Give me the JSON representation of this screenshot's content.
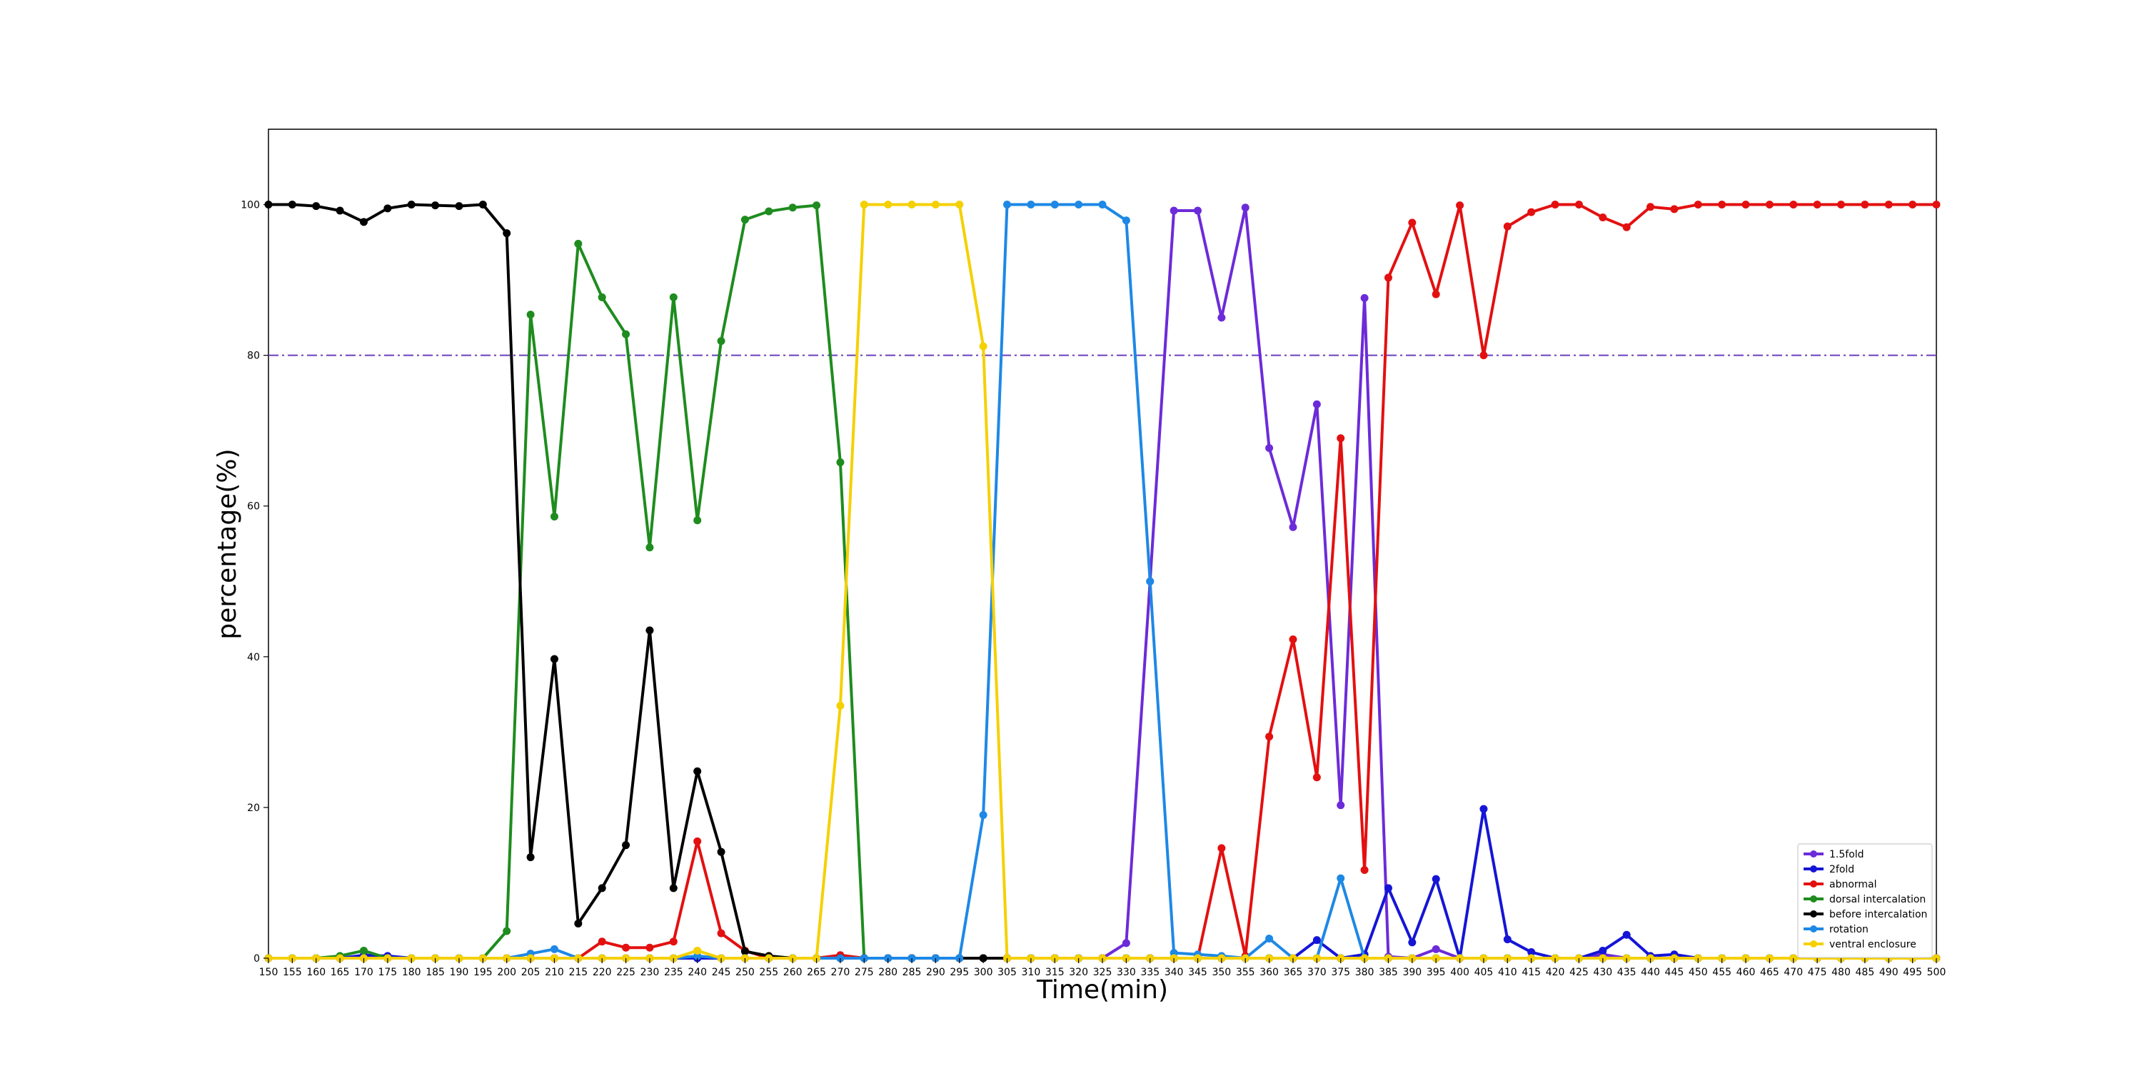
{
  "chart_data": {
    "type": "line",
    "title": "",
    "xlabel": "Time(min)",
    "ylabel": "percentage(%)",
    "xlim": [
      150,
      500
    ],
    "ylim": [
      0,
      110
    ],
    "x_ticks": [
      150,
      155,
      160,
      165,
      170,
      175,
      180,
      185,
      190,
      195,
      200,
      205,
      210,
      215,
      220,
      225,
      230,
      235,
      240,
      245,
      250,
      255,
      260,
      265,
      270,
      275,
      280,
      285,
      290,
      295,
      300,
      305,
      310,
      315,
      320,
      325,
      330,
      335,
      340,
      345,
      350,
      355,
      360,
      365,
      370,
      375,
      380,
      385,
      390,
      395,
      400,
      405,
      410,
      415,
      420,
      425,
      430,
      435,
      440,
      445,
      450,
      455,
      460,
      465,
      470,
      475,
      480,
      485,
      490,
      495,
      500
    ],
    "y_ticks": [
      0,
      20,
      40,
      60,
      80,
      100
    ],
    "threshold": {
      "y": 80,
      "color": "#6a3fbf",
      "style": "dash-dot"
    },
    "grid": false,
    "legend_position": "lower-right",
    "x": [
      150,
      155,
      160,
      165,
      170,
      175,
      180,
      185,
      190,
      195,
      200,
      205,
      210,
      215,
      220,
      225,
      230,
      235,
      240,
      245,
      250,
      255,
      260,
      265,
      270,
      275,
      280,
      285,
      290,
      295,
      300,
      305,
      310,
      315,
      320,
      325,
      330,
      335,
      340,
      345,
      350,
      355,
      360,
      365,
      370,
      375,
      380,
      385,
      390,
      395,
      400,
      405,
      410,
      415,
      420,
      425,
      430,
      435,
      440,
      445,
      450,
      455,
      460,
      465,
      470,
      475,
      480,
      485,
      490,
      495,
      500
    ],
    "series": [
      {
        "name": "1.5fold",
        "color": "#6c2bd9",
        "values": [
          0,
          0,
          0,
          0,
          0,
          0,
          0,
          0,
          0,
          0,
          0,
          0,
          0,
          0,
          0,
          0,
          0,
          0,
          0,
          0,
          0,
          0,
          0,
          0,
          0,
          0,
          0,
          0,
          0,
          0,
          0,
          0,
          0,
          0,
          0,
          0,
          2,
          50,
          99.2,
          99.2,
          85,
          99.6,
          67.7,
          57.2,
          73.5,
          20.3,
          87.6,
          0.2,
          0,
          1.2,
          0,
          0,
          0,
          0,
          0,
          0,
          0.5,
          0,
          0,
          0,
          0,
          0,
          0,
          0,
          0,
          0,
          0,
          0,
          0,
          0,
          0
        ]
      },
      {
        "name": "2fold",
        "color": "#1515d6",
        "values": [
          0,
          0,
          0,
          0,
          0.4,
          0.3,
          0,
          0,
          0,
          0,
          0,
          0,
          0,
          0,
          0,
          0,
          0,
          0,
          0,
          0,
          0,
          0,
          0,
          0,
          0,
          0,
          0,
          0,
          0,
          0,
          0,
          0,
          0,
          0,
          0,
          0,
          0,
          0,
          0,
          0,
          0,
          0,
          0,
          0,
          2.4,
          0,
          0.5,
          9.3,
          2.1,
          10.5,
          0,
          19.8,
          2.5,
          0.8,
          0,
          0,
          1,
          3.1,
          0.3,
          0.5,
          0,
          0,
          0,
          0,
          0,
          0,
          0,
          0,
          0,
          0,
          0
        ]
      },
      {
        "name": "abnormal",
        "color": "#e31010",
        "values": [
          0,
          0,
          0,
          0,
          0,
          0,
          0,
          0,
          0,
          0,
          0,
          0,
          0,
          0,
          2.2,
          1.4,
          1.4,
          2.2,
          15.5,
          3.3,
          1,
          0,
          0,
          0,
          0.4,
          0,
          0,
          0,
          0,
          0,
          0,
          0,
          0,
          0,
          0,
          0,
          0,
          0,
          0,
          0,
          14.6,
          0.3,
          29.4,
          42.3,
          24,
          69,
          11.7,
          90.3,
          97.6,
          88.1,
          99.9,
          80,
          97.1,
          99,
          100,
          100,
          98.3,
          97,
          99.7,
          99.4,
          100,
          100,
          100,
          100,
          100,
          100,
          100,
          100,
          100,
          100,
          100
        ]
      },
      {
        "name": "dorsal intercalation",
        "color": "#1e8c1e",
        "values": [
          0,
          0,
          0,
          0.3,
          1,
          0,
          0,
          0,
          0,
          0,
          3.6,
          85.4,
          58.6,
          94.8,
          87.7,
          82.8,
          54.5,
          87.7,
          58.1,
          81.9,
          98,
          99.1,
          99.6,
          99.9,
          65.8,
          0,
          0,
          0,
          0,
          0,
          0,
          0,
          0,
          0,
          0,
          0,
          0,
          0,
          0,
          0,
          0,
          0,
          0,
          0,
          0,
          0,
          0,
          0,
          0,
          0,
          0,
          0,
          0,
          0,
          0,
          0,
          0,
          0,
          0,
          0,
          0,
          0,
          0,
          0,
          0,
          0,
          0,
          0,
          0,
          0,
          0
        ]
      },
      {
        "name": "before intercalation",
        "color": "#000000",
        "values": [
          100,
          100,
          99.8,
          99.2,
          97.7,
          99.5,
          100,
          99.9,
          99.8,
          100,
          96.2,
          13.4,
          39.7,
          4.6,
          9.3,
          15,
          43.5,
          9.3,
          24.8,
          14.1,
          0.9,
          0.3,
          0,
          0,
          0,
          0,
          0,
          0,
          0,
          0,
          0,
          0,
          0,
          0,
          0,
          0,
          0,
          0,
          0,
          0,
          0,
          0,
          0,
          0,
          0,
          0,
          0,
          0,
          0,
          0,
          0,
          0,
          0,
          0,
          0,
          0,
          0,
          0,
          0,
          0,
          0,
          0,
          0,
          0,
          0,
          0,
          0,
          0,
          0,
          0,
          0
        ]
      },
      {
        "name": "rotation",
        "color": "#1e88e5",
        "values": [
          0,
          0,
          0,
          0,
          0,
          0,
          0,
          0,
          0,
          0,
          0,
          0.6,
          1.2,
          0,
          0,
          0,
          0,
          0,
          0.3,
          0,
          0,
          0,
          0,
          0,
          0,
          0,
          0,
          0,
          0,
          0,
          19,
          100,
          100,
          100,
          100,
          100,
          97.9,
          50,
          0.7,
          0.5,
          0.3,
          0,
          2.6,
          0,
          0,
          10.6,
          0,
          0,
          0,
          0,
          0,
          0,
          0,
          0,
          0,
          0,
          0,
          0,
          0,
          0,
          0,
          0,
          0,
          0,
          0,
          0,
          0,
          0,
          0,
          0,
          0
        ]
      },
      {
        "name": "ventral enclosure",
        "color": "#f5d000",
        "values": [
          0,
          0,
          0,
          0,
          0,
          0,
          0,
          0,
          0,
          0,
          0,
          0,
          0,
          0,
          0,
          0,
          0,
          0,
          1,
          0,
          0,
          0,
          0,
          0,
          33.5,
          100,
          100,
          100,
          100,
          100,
          81.2,
          0,
          0,
          0,
          0,
          0,
          0,
          0,
          0,
          0,
          0,
          0,
          0,
          0,
          0,
          0,
          0,
          0,
          0,
          0,
          0,
          0,
          0,
          0,
          0,
          0,
          0,
          0,
          0,
          0,
          0,
          0,
          0,
          0,
          0,
          0,
          0,
          0,
          0,
          0,
          0
        ]
      }
    ]
  }
}
